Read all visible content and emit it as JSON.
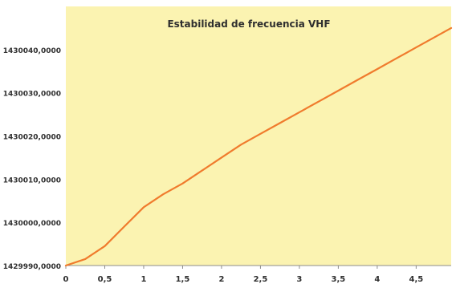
{
  "chart_data": {
    "type": "line",
    "title": "Estabilidad de frecuencia VHF",
    "xlabel": "",
    "ylabel": "",
    "xlim": [
      0,
      4.95
    ],
    "ylim": [
      1429.99,
      1430.05
    ],
    "x_ticks": [
      0,
      0.5,
      1,
      1.5,
      2,
      2.5,
      3,
      3.5,
      4,
      4.5
    ],
    "x_tick_labels": [
      "0",
      "0,5",
      "1",
      "1,5",
      "2",
      "2,5",
      "3",
      "3,5",
      "4",
      "4,5"
    ],
    "y_ticks": [
      1429.99,
      1430.0,
      1430.01,
      1430.02,
      1430.03,
      1430.04
    ],
    "y_tick_labels": [
      "1429990,0000",
      "1430000,0000",
      "1430010,0000",
      "1430020,0000",
      "1430030,0000",
      "1430040,0000"
    ],
    "grid": false,
    "legend": "none",
    "series": [
      {
        "color": "#f07b2d",
        "x": [
          0,
          0.25,
          0.5,
          0.75,
          1,
          1.25,
          1.5,
          1.75,
          2,
          2.25,
          2.5,
          2.75,
          3,
          3.25,
          3.5,
          3.75,
          4,
          4.25,
          4.5,
          4.75,
          4.95
        ],
        "y": [
          1429.99,
          1429.9915,
          1429.9945,
          1429.999,
          1430.0035,
          1430.0065,
          1430.009,
          1430.012,
          1430.015,
          1430.018,
          1430.0205,
          1430.023,
          1430.0255,
          1430.028,
          1430.0305,
          1430.033,
          1430.0355,
          1430.038,
          1430.0405,
          1430.043,
          1430.045
        ]
      }
    ],
    "colors": {
      "plot_background": "#fbf3b1",
      "page_background": "#ffffff",
      "text": "#2f2f2f",
      "axis": "#8c8c8c"
    }
  }
}
